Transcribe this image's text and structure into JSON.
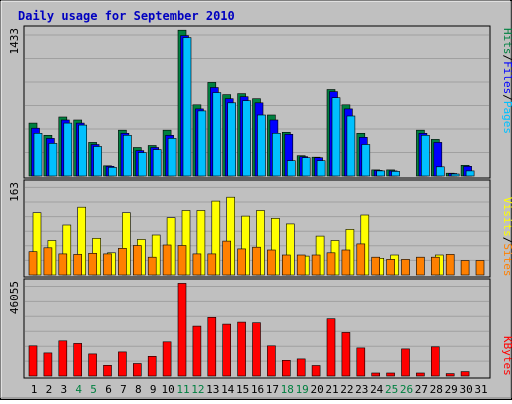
{
  "chart_data": [
    {
      "type": "bar",
      "title": "Daily usage for September 2010",
      "ymax_label": "1433",
      "ylim": [
        0,
        1433
      ],
      "series": [
        {
          "name": "Hits",
          "color": "#008040",
          "values": [
            520,
            400,
            580,
            550,
            330,
            100,
            450,
            280,
            300,
            450,
            1433,
            700,
            920,
            800,
            810,
            760,
            600,
            430,
            200,
            185,
            850,
            700,
            420,
            60,
            60,
            0,
            450,
            360,
            28,
            105,
            0
          ]
        },
        {
          "name": "Files",
          "color": "#0000ff",
          "values": [
            470,
            370,
            550,
            520,
            310,
            95,
            420,
            250,
            280,
            400,
            1380,
            660,
            870,
            760,
            780,
            720,
            550,
            410,
            190,
            180,
            830,
            660,
            380,
            55,
            50,
            0,
            420,
            330,
            25,
            95,
            0
          ]
        },
        {
          "name": "Pages",
          "color": "#00c0ff",
          "values": [
            420,
            320,
            520,
            500,
            290,
            85,
            400,
            230,
            260,
            370,
            1360,
            640,
            820,
            720,
            740,
            600,
            420,
            150,
            180,
            150,
            770,
            590,
            310,
            50,
            45,
            0,
            400,
            90,
            20,
            50,
            0
          ]
        }
      ]
    },
    {
      "type": "bar",
      "ymax_label": "163",
      "ylim": [
        0,
        163
      ],
      "series": [
        {
          "name": "Visits",
          "color": "#ffff00",
          "values": [
            112,
            62,
            90,
            122,
            66,
            40,
            112,
            64,
            72,
            103,
            116,
            116,
            133,
            140,
            106,
            116,
            102,
            92,
            34,
            70,
            62,
            82,
            108,
            30,
            36,
            0,
            0,
            36,
            0,
            0,
            0
          ]
        },
        {
          "name": "Sites",
          "color": "#ff8000",
          "values": [
            42,
            49,
            38,
            37,
            39,
            38,
            48,
            53,
            32,
            54,
            53,
            38,
            38,
            61,
            47,
            50,
            45,
            36,
            36,
            36,
            40,
            45,
            56,
            32,
            28,
            28,
            32,
            32,
            37,
            26,
            26
          ]
        }
      ]
    },
    {
      "type": "bar",
      "ymax_label": "46055",
      "ylim": [
        0,
        46055
      ],
      "series": [
        {
          "name": "KBytes",
          "color": "#ff0000",
          "values": [
            15000,
            11500,
            17500,
            16200,
            11000,
            5300,
            12000,
            6200,
            9800,
            17000,
            46055,
            24800,
            29200,
            25800,
            26800,
            26500,
            15000,
            7800,
            8500,
            5200,
            28500,
            21700,
            14000,
            1500,
            1500,
            13500,
            1500,
            14500,
            1200,
            2200,
            0
          ]
        }
      ]
    }
  ],
  "x_days": [
    "1",
    "2",
    "3",
    "4",
    "5",
    "6",
    "7",
    "8",
    "9",
    "10",
    "11",
    "12",
    "13",
    "14",
    "15",
    "16",
    "17",
    "18",
    "19",
    "20",
    "21",
    "22",
    "23",
    "24",
    "25",
    "26",
    "27",
    "28",
    "29",
    "30",
    "31"
  ],
  "weekend_days": [
    4,
    5,
    11,
    12,
    18,
    19,
    25,
    26
  ],
  "colors": {
    "background": "#c0c0c0",
    "title": "#0000c0",
    "day_label": "#000000",
    "weekend_label": "#008040",
    "bar_outline": "#000000"
  }
}
